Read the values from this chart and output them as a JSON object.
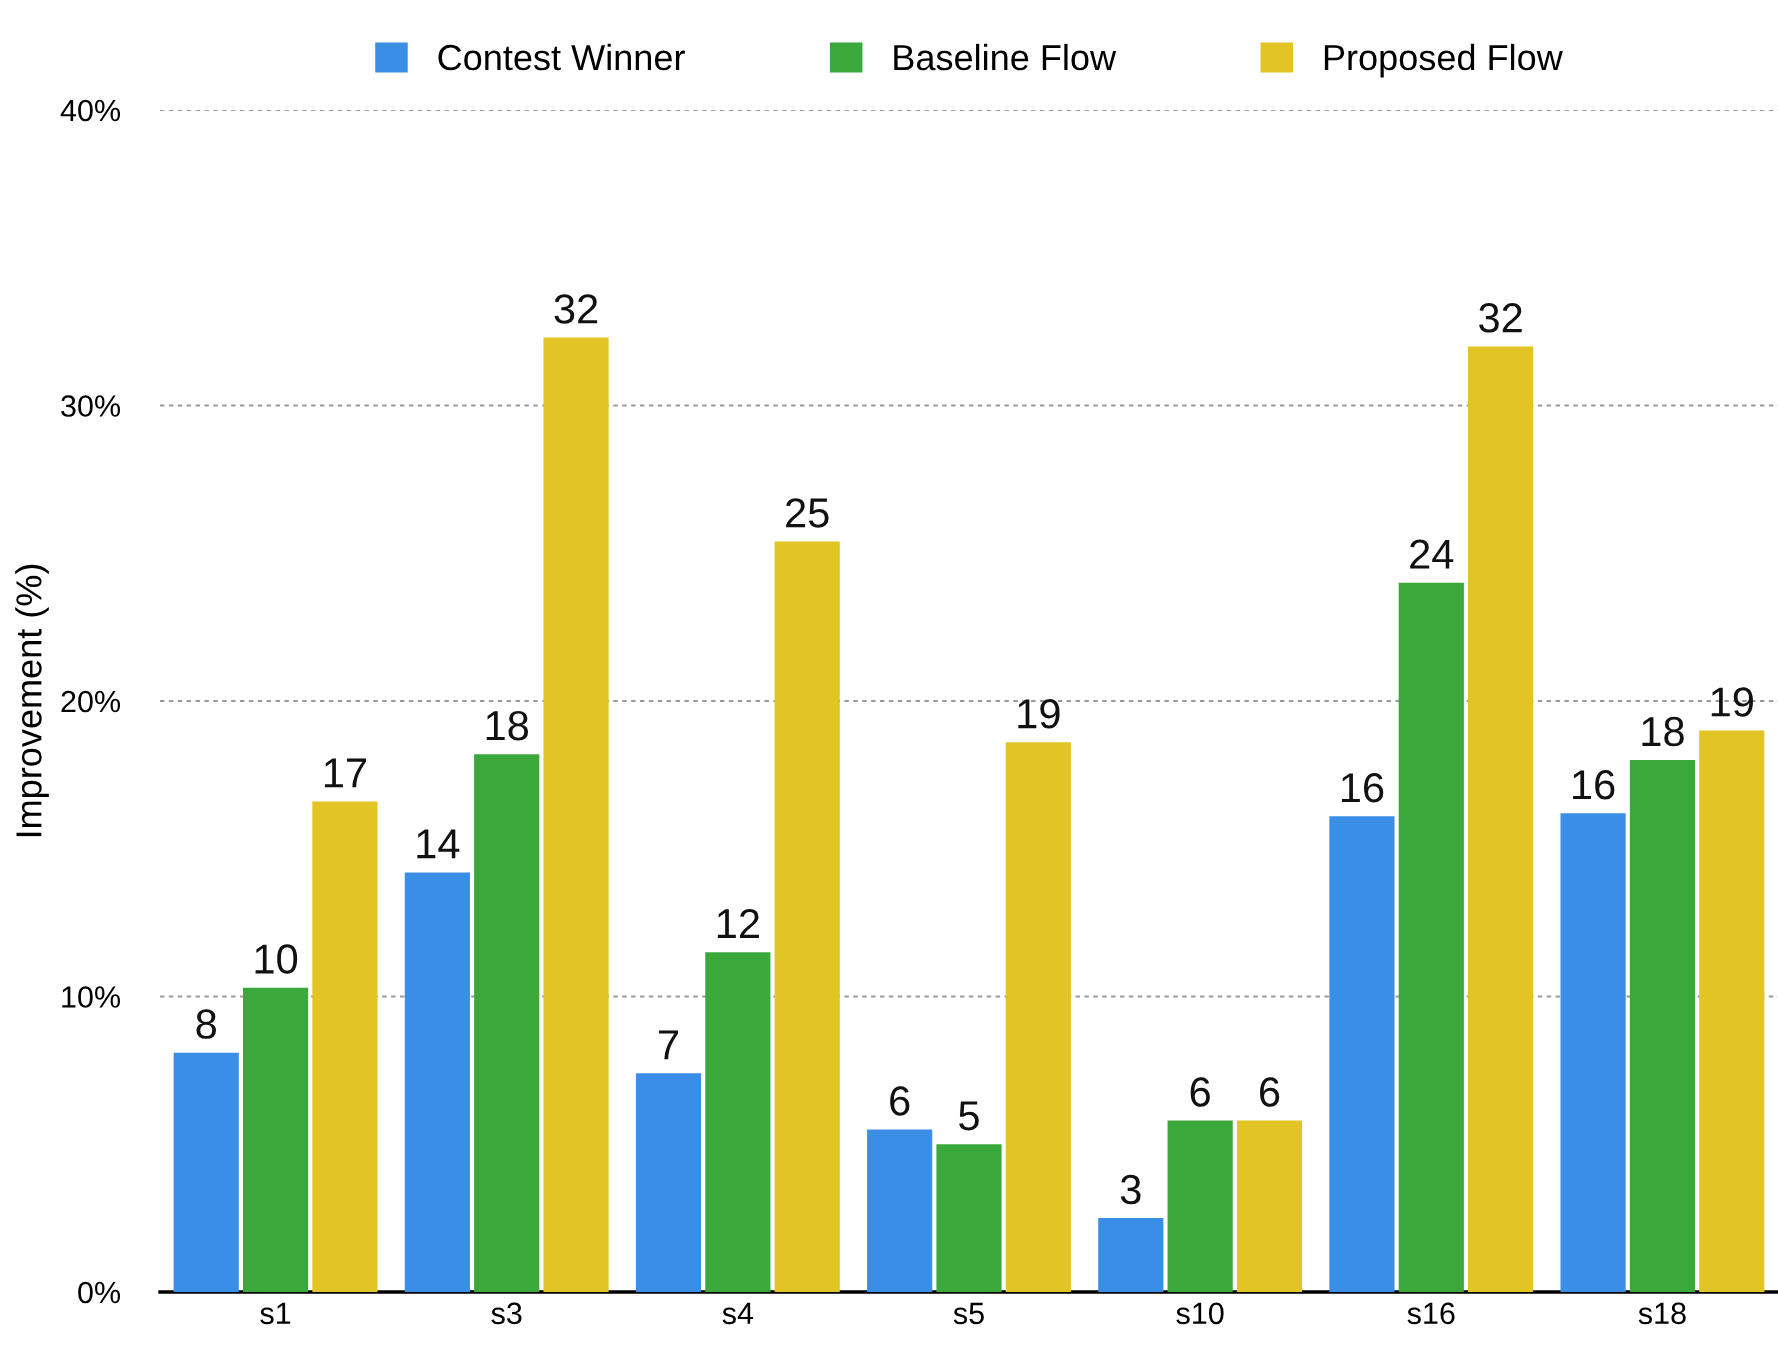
{
  "chart_data": {
    "type": "bar",
    "ylabel": "Improvement (%)",
    "categories": [
      "s1",
      "s3",
      "s4",
      "s5",
      "s10",
      "s16",
      "s18"
    ],
    "series": [
      {
        "name": "Contest Winner",
        "color": "#3a8ee6",
        "values": [
          8.1,
          14.2,
          7.4,
          5.5,
          2.5,
          16.1,
          16.2
        ],
        "value_labels": [
          "8",
          "14",
          "7",
          "6",
          "3",
          "16",
          "16"
        ]
      },
      {
        "name": "Baseline Flow",
        "color": "#3aa83a",
        "values": [
          10.3,
          18.2,
          11.5,
          5.0,
          5.8,
          24.0,
          18.0
        ],
        "value_labels": [
          "10",
          "18",
          "12",
          "5",
          "6",
          "24",
          "18"
        ]
      },
      {
        "name": "Proposed Flow",
        "color": "#e2c424",
        "values": [
          16.6,
          32.3,
          25.4,
          18.6,
          5.8,
          32.0,
          19.0
        ],
        "value_labels": [
          "17",
          "32",
          "25",
          "19",
          "6",
          "32",
          "19"
        ]
      }
    ],
    "ylim": [
      0,
      40
    ],
    "yticks": [
      {
        "value": 0,
        "label": "0%"
      },
      {
        "value": 10,
        "label": "10%"
      },
      {
        "value": 20,
        "label": "20%"
      },
      {
        "value": 30,
        "label": "30%"
      },
      {
        "value": 40,
        "label": "40%"
      }
    ],
    "grid": "y",
    "legend": "top"
  }
}
